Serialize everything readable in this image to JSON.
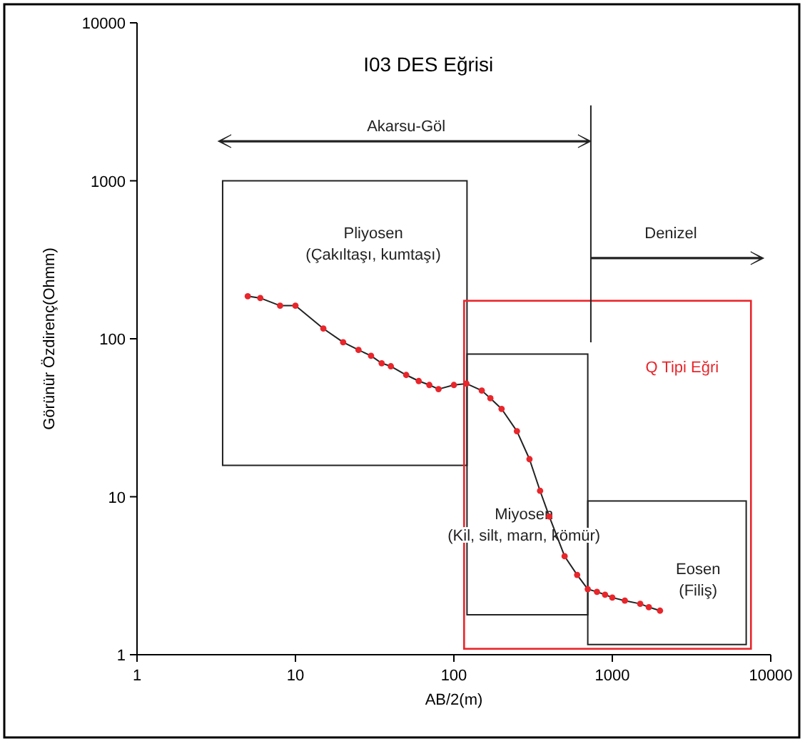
{
  "chart_data": {
    "type": "line",
    "title": "I03 DES Eğrisi",
    "xlabel": "AB/2(m)",
    "ylabel": "Görünür Özdirenç(Ohmm)",
    "log": "xy",
    "grid": false,
    "marker": "circle",
    "line_style": "solid",
    "xlim": [
      1,
      10000
    ],
    "ylim": [
      1,
      10000
    ],
    "xticks": [
      1,
      10,
      100,
      1000,
      10000
    ],
    "yticks": [
      1,
      10,
      100,
      1000,
      10000
    ],
    "series": [
      {
        "color": "#e8262b",
        "x": [
          5,
          6,
          8,
          10,
          15,
          20,
          25,
          30,
          35,
          40,
          50,
          60,
          70,
          80,
          100,
          120,
          150,
          170,
          200,
          250,
          300,
          350,
          400,
          500,
          600,
          700,
          800,
          900,
          1000,
          1200,
          1500,
          1700,
          2000
        ],
        "values": [
          186,
          181,
          162,
          162,
          116,
          95,
          85,
          78,
          70,
          67,
          59,
          54,
          51,
          48,
          51,
          52,
          47,
          42,
          36,
          26,
          17.3,
          10.9,
          7.5,
          4.2,
          3.2,
          2.6,
          2.5,
          2.4,
          2.3,
          2.2,
          2.1,
          2.0,
          1.9
        ]
      }
    ],
    "annotations": [
      "Akarsu-Göl",
      "Denizel",
      "Pliyosen\n(Çakıltaşı, kumtaşı)",
      "Q Tipi Eğri",
      "Miyosen\n(Kil, silt, marn, kömür)",
      "Eosen\n(Filiş)"
    ]
  }
}
